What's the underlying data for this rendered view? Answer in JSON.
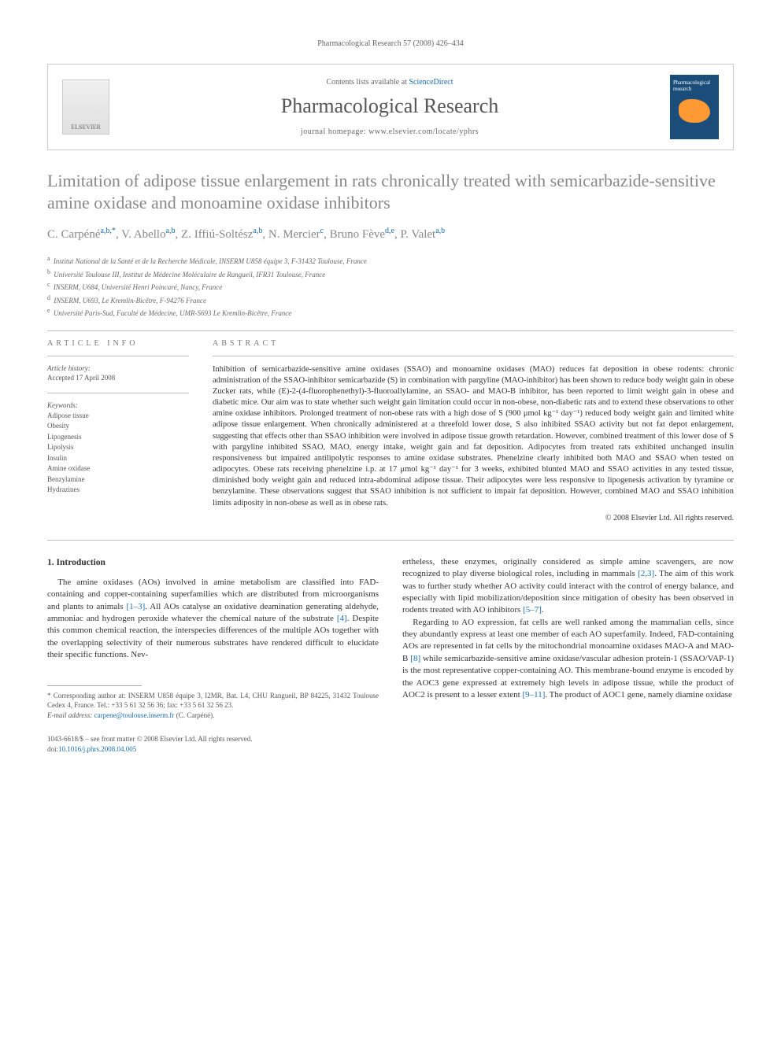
{
  "header_citation": "Pharmacological Research 57 (2008) 426–434",
  "journal_banner": {
    "contents_prefix": "Contents lists available at ",
    "contents_link": "ScienceDirect",
    "journal_name": "Pharmacological Research",
    "homepage_label": "journal homepage: ",
    "homepage_url": "www.elsevier.com/locate/yphrs",
    "elsevier_label": "ELSEVIER",
    "cover_text": "Pharmacological research"
  },
  "title": "Limitation of adipose tissue enlargement in rats chronically treated with semicarbazide-sensitive amine oxidase and monoamine oxidase inhibitors",
  "authors_html": "C. Carpéné<sup>a,b,*</sup>, V. Abello<sup>a,b</sup>, Z. Iffiú-Soltész<sup>a,b</sup>, N. Mercier<sup>c</sup>, Bruno Fève<sup>d,e</sup>, P. Valet<sup>a,b</sup>",
  "affiliations": [
    "Institut National de la Santé et de la Recherche Médicale, INSERM U858 équipe 3, F-31432 Toulouse, France",
    "Université Toulouse III, Institut de Médecine Moléculaire de Rangueil, IFR31 Toulouse, France",
    "INSERM, U684, Université Henri Poincaré, Nancy, France",
    "INSERM, U693, Le Kremlin-Bicêtre, F-94276 France",
    "Université Paris-Sud, Faculté de Médecine, UMR-S693 Le Kremlin-Bicêtre, France"
  ],
  "aff_letters": [
    "a",
    "b",
    "c",
    "d",
    "e"
  ],
  "info": {
    "head": "ARTICLE INFO",
    "history_head": "Article history:",
    "accepted": "Accepted 17 April 2008",
    "kw_head": "Keywords:",
    "keywords": [
      "Adipose tissue",
      "Obesity",
      "Lipogenesis",
      "Lipolysis",
      "Insulin",
      "Amine oxidase",
      "Benzylamine",
      "Hydrazines"
    ]
  },
  "abstract": {
    "head": "ABSTRACT",
    "text": "Inhibition of semicarbazide-sensitive amine oxidases (SSAO) and monoamine oxidases (MAO) reduces fat deposition in obese rodents: chronic administration of the SSAO-inhibitor semicarbazide (S) in combination with pargyline (MAO-inhibitor) has been shown to reduce body weight gain in obese Zucker rats, while (E)-2-(4-fluorophenethyl)-3-fluoroallylamine, an SSAO- and MAO-B inhibitor, has been reported to limit weight gain in obese and diabetic mice. Our aim was to state whether such weight gain limitation could occur in non-obese, non-diabetic rats and to extend these observations to other amine oxidase inhibitors. Prolonged treatment of non-obese rats with a high dose of S (900 μmol kg⁻¹ day⁻¹) reduced body weight gain and limited white adipose tissue enlargement. When chronically administered at a threefold lower dose, S also inhibited SSAO activity but not fat depot enlargement, suggesting that effects other than SSAO inhibition were involved in adipose tissue growth retardation. However, combined treatment of this lower dose of S with pargyline inhibited SSAO, MAO, energy intake, weight gain and fat deposition. Adipocytes from treated rats exhibited unchanged insulin responsiveness but impaired antilipolytic responses to amine oxidase substrates. Phenelzine clearly inhibited both MAO and SSAO when tested on adipocytes. Obese rats receiving phenelzine i.p. at 17 μmol kg⁻¹ day⁻¹ for 3 weeks, exhibited blunted MAO and SSAO activities in any tested tissue, diminished body weight gain and reduced intra-abdominal adipose tissue. Their adipocytes were less responsive to lipogenesis activation by tyramine or benzylamine. These observations suggest that SSAO inhibition is not sufficient to impair fat deposition. However, combined MAO and SSAO inhibition limits adiposity in non-obese as well as in obese rats.",
    "copyright": "© 2008 Elsevier Ltd. All rights reserved."
  },
  "section1_head": "1.  Introduction",
  "col1_p1": "The amine oxidases (AOs) involved in amine metabolism are classified into FAD-containing and copper-containing superfamilies which are distributed from microorganisms and plants to animals [1–3]. All AOs catalyse an oxidative deamination generating aldehyde, ammoniac and hydrogen peroxide whatever the chemical nature of the substrate [4]. Despite this common chemical reaction, the interspecies differences of the multiple AOs together with the overlapping selectivity of their numerous substrates have rendered difficult to elucidate their specific functions. Nev-",
  "col2_p1": "ertheless, these enzymes, originally considered as simple amine scavengers, are now recognized to play diverse biological roles, including in mammals [2,3]. The aim of this work was to further study whether AO activity could interact with the control of energy balance, and especially with lipid mobilization/deposition since mitigation of obesity has been observed in rodents treated with AO inhibitors [5–7].",
  "col2_p2": "Regarding to AO expression, fat cells are well ranked among the mammalian cells, since they abundantly express at least one member of each AO superfamily. Indeed, FAD-containing AOs are represented in fat cells by the mitochondrial monoamine oxidases MAO-A and MAO-B [8] while semicarbazide-sensitive amine oxidase/vascular adhesion protein-1 (SSAO/VAP-1) is the most representative copper-containing AO. This membrane-bound enzyme is encoded by the AOC3 gene expressed at extremely high levels in adipose tissue, while the product of AOC2 is present to a lesser extent [9–11]. The product of AOC1 gene, namely diamine oxidase",
  "footnotes": {
    "corr": "* Corresponding author at: INSERM U858 équipe 3, I2MR, Bat. L4, CHU Rangueil, BP 84225, 31432 Toulouse Cedex 4, France. Tel.: +33 5 61 32 56 36; fax: +33 5 61 32 56 23.",
    "email_label": "E-mail address: ",
    "email": "carpene@toulouse.inserm.fr",
    "email_who": " (C. Carpéné)."
  },
  "bottom": {
    "left": "1043-6618/$ – see front matter © 2008 Elsevier Ltd. All rights reserved.",
    "doi_label": "doi:",
    "doi": "10.1016/j.phrs.2008.04.005"
  }
}
